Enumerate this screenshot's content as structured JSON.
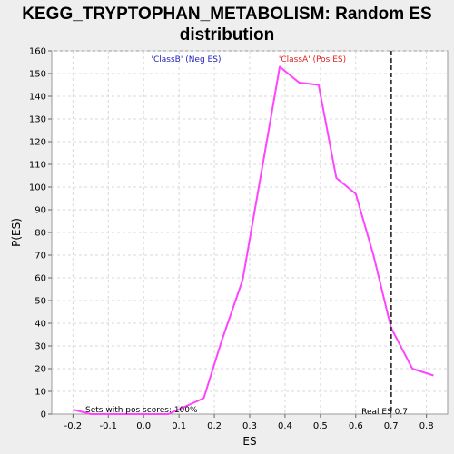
{
  "chart_data": {
    "type": "line",
    "title_lines": [
      "KEGG_TRYPTOPHAN_METABOLISM: Random ES",
      "distribution"
    ],
    "xlabel": "ES",
    "ylabel": "P(ES)",
    "xlim": [
      -0.26,
      0.86
    ],
    "ylim": [
      0,
      160
    ],
    "x_ticks": [
      "-0.2",
      "-0.1",
      "0.0",
      "0.1",
      "0.2",
      "0.3",
      "0.4",
      "0.5",
      "0.6",
      "0.7",
      "0.8"
    ],
    "x_tick_values": [
      -0.2,
      -0.1,
      0.0,
      0.1,
      0.2,
      0.3,
      0.4,
      0.5,
      0.6,
      0.7,
      0.8
    ],
    "y_ticks": [
      "0",
      "10",
      "20",
      "30",
      "40",
      "50",
      "60",
      "70",
      "80",
      "90",
      "100",
      "110",
      "120",
      "130",
      "140",
      "150",
      "160"
    ],
    "y_tick_values": [
      0,
      10,
      20,
      30,
      40,
      50,
      60,
      70,
      80,
      90,
      100,
      110,
      120,
      130,
      140,
      150,
      160
    ],
    "grid": true,
    "series": [
      {
        "color": "#ff44ff",
        "x": [
          -0.2,
          -0.15,
          -0.05,
          0.07,
          0.17,
          0.22,
          0.28,
          0.385,
          0.44,
          0.495,
          0.545,
          0.6,
          0.65,
          0.7,
          0.76,
          0.82
        ],
        "y": [
          2,
          0,
          0,
          0,
          7,
          32,
          59,
          153,
          146,
          145,
          104,
          97,
          70,
          38,
          20,
          17
        ]
      }
    ],
    "real_es": 0.7,
    "real_es_color": "#333333",
    "annotations": {
      "neg_label": "'ClassB' (Neg ES)",
      "neg_color": "#2222bb",
      "pos_label": "'ClassA' (Pos ES)",
      "pos_color": "#dd2222",
      "sets_label": "Sets with pos scores: 100%",
      "real_es_label": "Real ES 0.7"
    }
  }
}
